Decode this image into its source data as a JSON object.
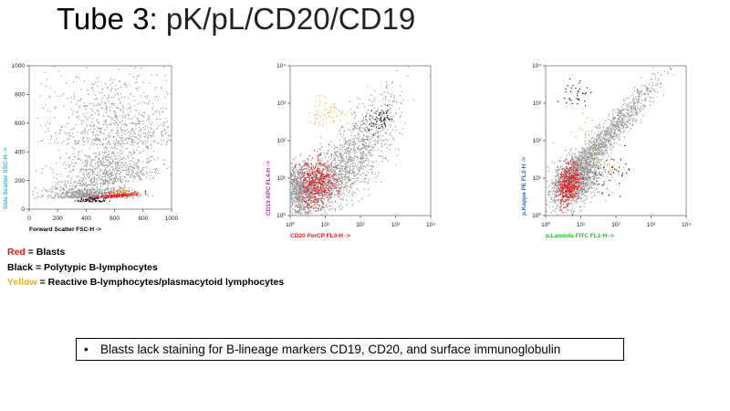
{
  "slide": {
    "title_main": "Tube 3:",
    "title_rest": " pK/pL/CD20/CD19"
  },
  "legend": [
    {
      "key": "Red",
      "rest": " = Blasts",
      "color": "#e0191f"
    },
    {
      "key": "Black",
      "rest": " = Polytypic B-lymphocytes",
      "color": "#000000"
    },
    {
      "key": "Yellow",
      "rest": " = Reactive B-lymphocytes/plasmacytoid lymphocytes",
      "color": "#e8b21a"
    }
  ],
  "bullet": {
    "symbol": "•",
    "text": "Blasts lack staining for B-lineage markers CD19, CD20, and surface immunoglobulin"
  },
  "colors": {
    "gray": "#9a9a9a",
    "red": "#e0191f",
    "black": "#111111",
    "yellow": "#e8b21a"
  },
  "chart_data": [
    {
      "type": "scatter",
      "scale": "linear",
      "xlabel": "Forward Scatter FSC-H ->",
      "ylabel": "Side Scatter SSC-H ->",
      "xlabel_color": "#000000",
      "ylabel_color": "#1fb9c9",
      "xlim": [
        0,
        1000
      ],
      "ylim": [
        0,
        1000
      ],
      "xticks": [
        "0",
        "200",
        "400",
        "600",
        "800",
        "1000"
      ],
      "yticks": [
        "0",
        "200",
        "400",
        "600",
        "800",
        "1000"
      ],
      "series": [
        {
          "name": "Other events",
          "color": "gray",
          "count": 2200,
          "clusters": [
            {
              "cx": 560,
              "cy": 180,
              "sx": 180,
              "sy": 150,
              "skew": 0.12
            },
            {
              "cx": 420,
              "cy": 80,
              "sx": 150,
              "sy": 40,
              "skew": 0.0
            },
            {
              "cx": 600,
              "cy": 450,
              "sx": 260,
              "sy": 260,
              "skew": 0.0
            }
          ]
        },
        {
          "name": "Blasts",
          "color": "red",
          "count": 170,
          "clusters": [
            {
              "cx": 600,
              "cy": 85,
              "sx": 90,
              "sy": 18,
              "skew": 0.08
            }
          ]
        },
        {
          "name": "Polytypic B-lymphocytes",
          "color": "black",
          "count": 70,
          "clusters": [
            {
              "cx": 440,
              "cy": 55,
              "sx": 55,
              "sy": 14,
              "skew": 0.0
            }
          ]
        },
        {
          "name": "Reactive B-lymphocytes",
          "color": "yellow",
          "count": 25,
          "clusters": [
            {
              "cx": 660,
              "cy": 110,
              "sx": 60,
              "sy": 20,
              "skew": 0.0
            }
          ]
        }
      ]
    },
    {
      "type": "scatter",
      "scale": "log",
      "xlabel": "CD20 PerCP FL3-H ->",
      "ylabel": "CD19 APC FL4-H ->",
      "xlabel_color": "#e0191f",
      "ylabel_color": "#c626c6",
      "xlim": [
        1,
        10000
      ],
      "ylim": [
        1,
        10000
      ],
      "xticks": [
        "10^0",
        "10^1",
        "10^2",
        "10^3",
        "10^4"
      ],
      "yticks": [
        "10^0",
        "10^1",
        "10^2",
        "10^3",
        "10^4"
      ],
      "series": [
        {
          "name": "Other events",
          "color": "gray",
          "count": 2300,
          "clusters": [
            {
              "lx": 1.05,
              "ly": 0.95,
              "sx": 0.45,
              "sy": 0.38,
              "skew": 0.55
            },
            {
              "lx": 0.25,
              "ly": 0.7,
              "sx": 0.22,
              "sy": 0.35,
              "skew": 0.0
            },
            {
              "lx": 2.0,
              "ly": 1.8,
              "sx": 0.55,
              "sy": 0.55,
              "skew": 0.9
            }
          ]
        },
        {
          "name": "Blasts",
          "color": "red",
          "count": 420,
          "clusters": [
            {
              "lx": 0.75,
              "ly": 0.85,
              "sx": 0.28,
              "sy": 0.32,
              "skew": 0.0
            }
          ]
        },
        {
          "name": "Polytypic B-lymphocytes",
          "color": "black",
          "count": 60,
          "clusters": [
            {
              "lx": 2.55,
              "ly": 2.55,
              "sx": 0.22,
              "sy": 0.14,
              "skew": 0.3
            }
          ]
        },
        {
          "name": "Reactive B-lymphocytes",
          "color": "yellow",
          "count": 45,
          "clusters": [
            {
              "lx": 1.0,
              "ly": 2.75,
              "sx": 0.35,
              "sy": 0.18,
              "skew": 0.0
            }
          ]
        }
      ]
    },
    {
      "type": "scatter",
      "scale": "log",
      "xlabel": "p.Lambda FITC FL1-H ->",
      "ylabel": "p.Kappa PE FL2-H ->",
      "xlabel_color": "#1fc41f",
      "ylabel_color": "#2a6fcf",
      "xlim": [
        1,
        10000
      ],
      "ylim": [
        1,
        10000
      ],
      "xticks": [
        "10^0",
        "10^1",
        "10^2",
        "10^3",
        "10^4"
      ],
      "yticks": [
        "10^0",
        "10^1",
        "10^2",
        "10^3",
        "10^4"
      ],
      "series": [
        {
          "name": "Other events",
          "color": "gray",
          "count": 2300,
          "clusters": [
            {
              "lx": 1.6,
              "ly": 2.0,
              "sx": 0.75,
              "sy": 0.22,
              "skew": 1.0
            },
            {
              "lx": 0.9,
              "ly": 1.0,
              "sx": 0.35,
              "sy": 0.35,
              "skew": 0.4
            }
          ]
        },
        {
          "name": "Blasts",
          "color": "red",
          "count": 380,
          "clusters": [
            {
              "lx": 0.65,
              "ly": 0.85,
              "sx": 0.16,
              "sy": 0.28,
              "skew": 0.5
            }
          ]
        },
        {
          "name": "Polytypic B-lymphocytes",
          "color": "black",
          "count": 70,
          "clusters": [
            {
              "lx": 0.85,
              "ly": 3.25,
              "sx": 0.18,
              "sy": 0.22,
              "skew": 0.0
            },
            {
              "lx": 2.0,
              "ly": 1.2,
              "sx": 0.3,
              "sy": 0.25,
              "skew": 0.0
            }
          ]
        },
        {
          "name": "Reactive B-lymphocytes",
          "color": "yellow",
          "count": 45,
          "clusters": [
            {
              "lx": 1.15,
              "ly": 2.1,
              "sx": 0.3,
              "sy": 0.25,
              "skew": 0.2
            },
            {
              "lx": 1.8,
              "ly": 1.4,
              "sx": 0.25,
              "sy": 0.2,
              "skew": 0.0
            }
          ]
        }
      ]
    }
  ]
}
